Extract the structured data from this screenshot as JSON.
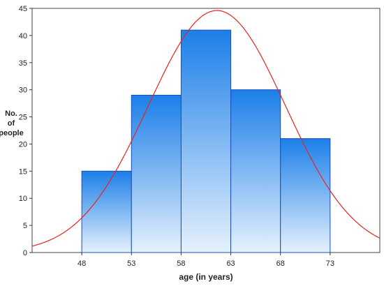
{
  "chart_data": {
    "type": "bar",
    "bins": [
      {
        "from": 48,
        "to": 53,
        "count": 15
      },
      {
        "from": 53,
        "to": 58,
        "count": 29
      },
      {
        "from": 58,
        "to": 63,
        "count": 41
      },
      {
        "from": 63,
        "to": 68,
        "count": 30
      },
      {
        "from": 68,
        "to": 73,
        "count": 21
      }
    ],
    "xticks": [
      "48",
      "53",
      "58",
      "63",
      "68",
      "73"
    ],
    "yticks": [
      "0",
      "5",
      "10",
      "15",
      "20",
      "25",
      "30",
      "35",
      "40",
      "45"
    ],
    "xlabel": "age (in years)",
    "ylabel_lines": [
      "No.",
      "of",
      "people"
    ],
    "xlim": [
      43,
      78
    ],
    "ylim": [
      0,
      45
    ],
    "grid": false,
    "overlay": {
      "type": "normal-curve",
      "mean": 61.6,
      "peak": 44.6,
      "sd": 6.9
    },
    "colors": {
      "bar_top": "#1c7fe8",
      "bar_bottom": "#e6f1fd",
      "bar_edge": "#1a4fb8",
      "curve": "#e8231f",
      "axis": "#333333"
    }
  }
}
